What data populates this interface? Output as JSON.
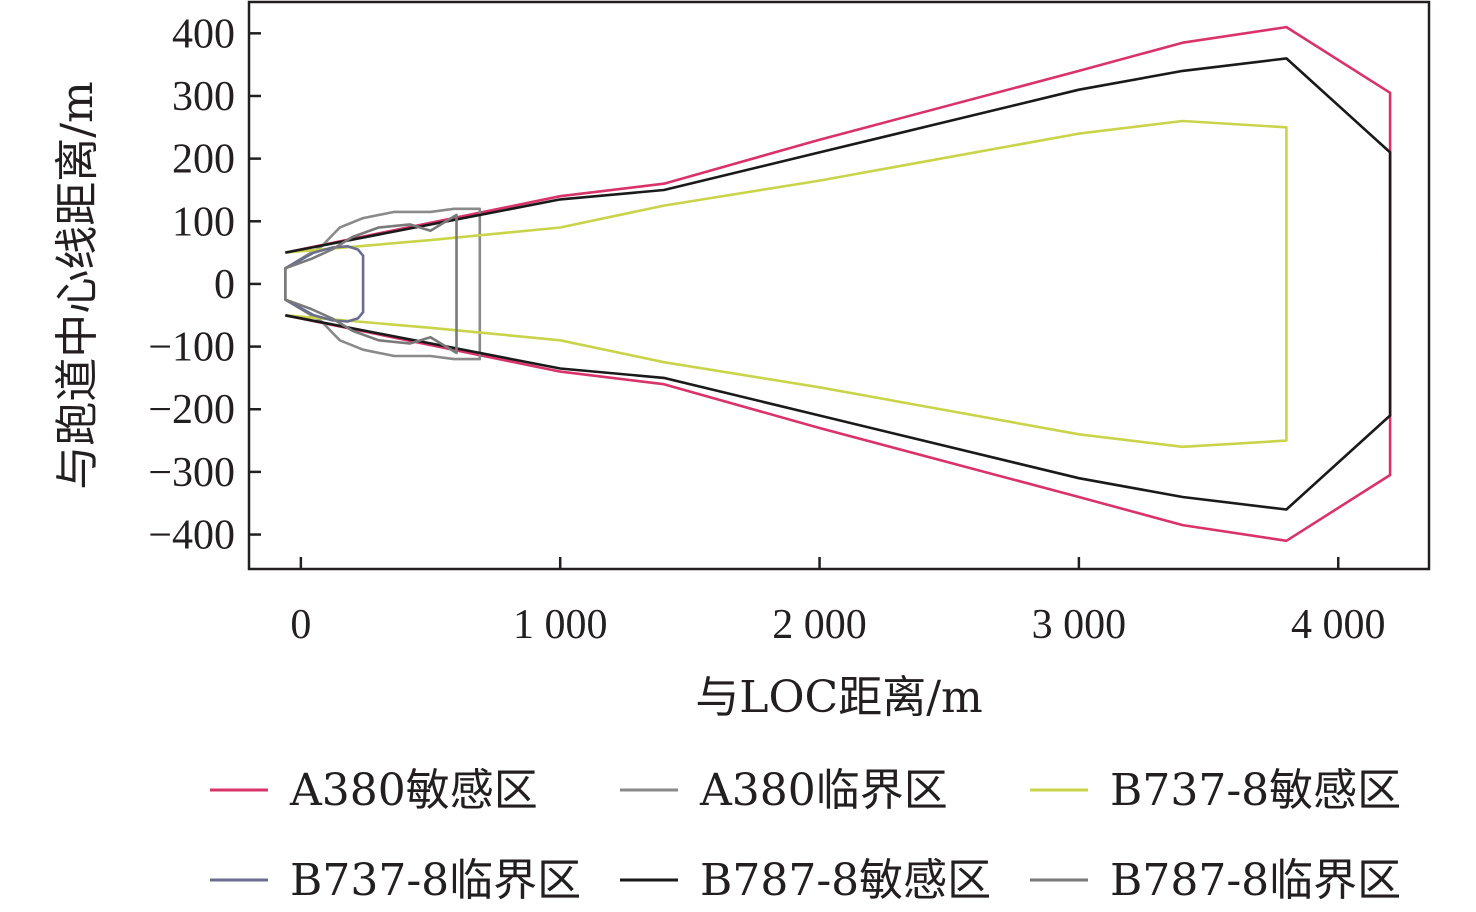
{
  "chart_data": {
    "type": "line",
    "xlabel": "与LOC距离/m",
    "ylabel": "与跑道中心线距离/m",
    "xlim": [
      -200,
      4350
    ],
    "ylim": [
      -455,
      450
    ],
    "x_ticks": [
      0,
      1000,
      2000,
      3000,
      4000
    ],
    "x_tick_labels": [
      "0",
      "1 000",
      "2 000",
      "3 000",
      "4 000"
    ],
    "y_ticks": [
      400,
      300,
      200,
      100,
      0,
      -100,
      -200,
      -300,
      -400
    ],
    "y_tick_labels": [
      "400",
      "300",
      "200",
      "100",
      "0",
      "−100",
      "−200",
      "−300",
      "−400"
    ],
    "grid": false,
    "legend_position": "bottom",
    "series": [
      {
        "name": "A380敏感区",
        "color": "#d9336a",
        "x": [
          -60,
          1000,
          1400,
          2000,
          3000,
          3400,
          3800,
          4200,
          4200,
          3800,
          3400,
          3000,
          2000,
          1400,
          1000,
          -60
        ],
        "y": [
          50,
          140,
          160,
          230,
          340,
          385,
          410,
          305,
          -305,
          -410,
          -385,
          -340,
          -230,
          -160,
          -140,
          -50
        ]
      },
      {
        "name": "A380临界区",
        "color": "#8a8a8a",
        "x": [
          -60,
          80,
          150,
          240,
          360,
          500,
          590,
          690,
          690,
          590,
          500,
          360,
          240,
          150,
          80,
          -60
        ],
        "y": [
          25,
          60,
          90,
          105,
          115,
          115,
          120,
          120,
          -120,
          -120,
          -115,
          -115,
          -105,
          -90,
          -60,
          -25
        ],
        "closed": true
      },
      {
        "name": "B737-8敏感区",
        "color": "#c9d44a",
        "x": [
          -60,
          500,
          1000,
          1400,
          2000,
          3000,
          3400,
          3800,
          3800,
          3400,
          3000,
          2000,
          1400,
          1000,
          500,
          -60
        ],
        "y": [
          50,
          70,
          90,
          125,
          165,
          240,
          260,
          250,
          -250,
          -260,
          -240,
          -165,
          -125,
          -90,
          -70,
          -50
        ]
      },
      {
        "name": "B737-8临界区",
        "color": "#6b6d8f",
        "x": [
          -60,
          50,
          120,
          180,
          220,
          240,
          240,
          220,
          180,
          120,
          50,
          -60
        ],
        "y": [
          25,
          50,
          58,
          60,
          55,
          45,
          -45,
          -55,
          -60,
          -58,
          -50,
          -25
        ],
        "closed": true
      },
      {
        "name": "B787-8敏感区",
        "color": "#1a1a1a",
        "x": [
          -60,
          1000,
          1400,
          2000,
          3000,
          3400,
          3800,
          4200,
          4200,
          3800,
          3400,
          3000,
          2000,
          1400,
          1000,
          -60
        ],
        "y": [
          50,
          135,
          150,
          210,
          310,
          340,
          360,
          210,
          -210,
          -360,
          -340,
          -310,
          -210,
          -150,
          -135,
          -50
        ]
      },
      {
        "name": "B787-8临界区",
        "color": "#7a7a7a",
        "x": [
          -60,
          40,
          120,
          200,
          300,
          420,
          500,
          600,
          600,
          500,
          420,
          300,
          200,
          120,
          40,
          -60
        ],
        "y": [
          25,
          40,
          55,
          75,
          90,
          95,
          85,
          110,
          -110,
          -85,
          -95,
          -90,
          -75,
          -55,
          -40,
          -25
        ],
        "closed": true
      }
    ]
  }
}
